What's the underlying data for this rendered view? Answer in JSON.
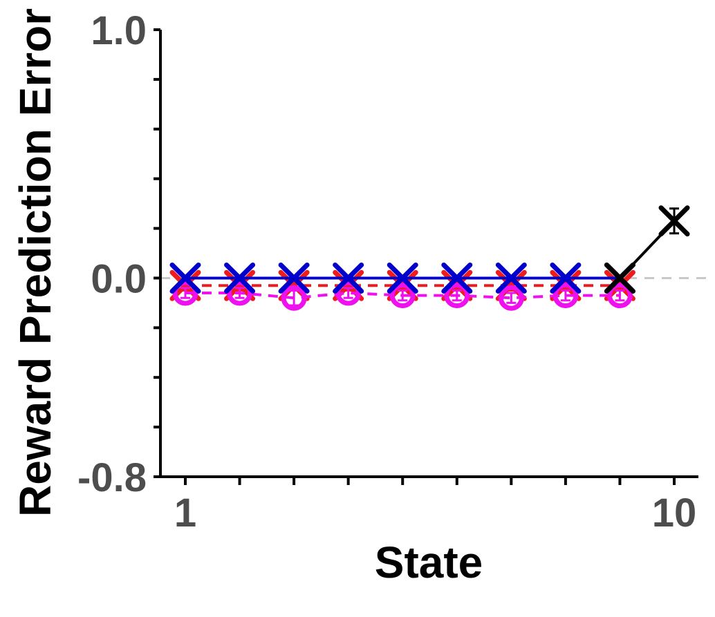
{
  "chart_data": {
    "type": "line",
    "title": "",
    "xlabel": "State",
    "ylabel": "Reward Prediction Error",
    "xlim": [
      1,
      10
    ],
    "ylim": [
      -0.8,
      1.0
    ],
    "x_tick_labels": [
      {
        "value": 1,
        "label": "1"
      },
      {
        "value": 10,
        "label": "10"
      }
    ],
    "x_minor_ticks": [
      2,
      3,
      4,
      5,
      6,
      7,
      8,
      9
    ],
    "y_tick_labels": [
      {
        "value": 1.0,
        "label": "1.0"
      },
      {
        "value": 0.0,
        "label": "0.0"
      },
      {
        "value": -0.8,
        "label": "-0.8"
      }
    ],
    "y_minor_ticks": [
      0.8,
      0.6,
      0.4,
      0.2,
      -0.2,
      -0.4,
      -0.6
    ],
    "reference_line": {
      "y": 0.0,
      "color": "#c8c8c8",
      "style": "dashed"
    },
    "grid": false,
    "legend": "none",
    "colors": {
      "axis": "#000000",
      "tick_label": "#4d4d4d"
    },
    "series": [
      {
        "color": "#ee1c1c",
        "line_style": "dashed",
        "marker": "x",
        "x": [
          1,
          2,
          3,
          4,
          5,
          6,
          7,
          8,
          9
        ],
        "y": [
          -0.03,
          -0.03,
          -0.03,
          -0.03,
          -0.03,
          -0.03,
          -0.03,
          -0.03,
          -0.03
        ],
        "err": [
          0.02,
          0.02,
          0.02,
          0.02,
          0.02,
          0.02,
          0.02,
          0.02,
          0.02
        ]
      },
      {
        "color": "#ee10ee",
        "line_style": "dashed",
        "marker": "o",
        "x": [
          1,
          2,
          3,
          4,
          5,
          6,
          7,
          8,
          9
        ],
        "y": [
          -0.06,
          -0.06,
          -0.08,
          -0.06,
          -0.07,
          -0.07,
          -0.08,
          -0.07,
          -0.07
        ],
        "err": [
          0.02,
          0.02,
          0.03,
          0.02,
          0.02,
          0.02,
          0.02,
          0.02,
          0.02
        ]
      },
      {
        "color": "#0000cc",
        "line_style": "solid",
        "marker": "x",
        "x": [
          1,
          2,
          3,
          4,
          5,
          6,
          7,
          8,
          9
        ],
        "y": [
          0.0,
          0.0,
          0.0,
          0.0,
          0.0,
          0.0,
          0.0,
          0.0,
          0.0
        ],
        "err": [
          0,
          0,
          0,
          0,
          0,
          0,
          0,
          0,
          0
        ]
      },
      {
        "color": "#000000",
        "line_style": "solid",
        "marker": "x",
        "x": [
          9,
          10
        ],
        "y": [
          0.0,
          0.23
        ],
        "err": [
          0,
          0.05
        ]
      }
    ]
  }
}
